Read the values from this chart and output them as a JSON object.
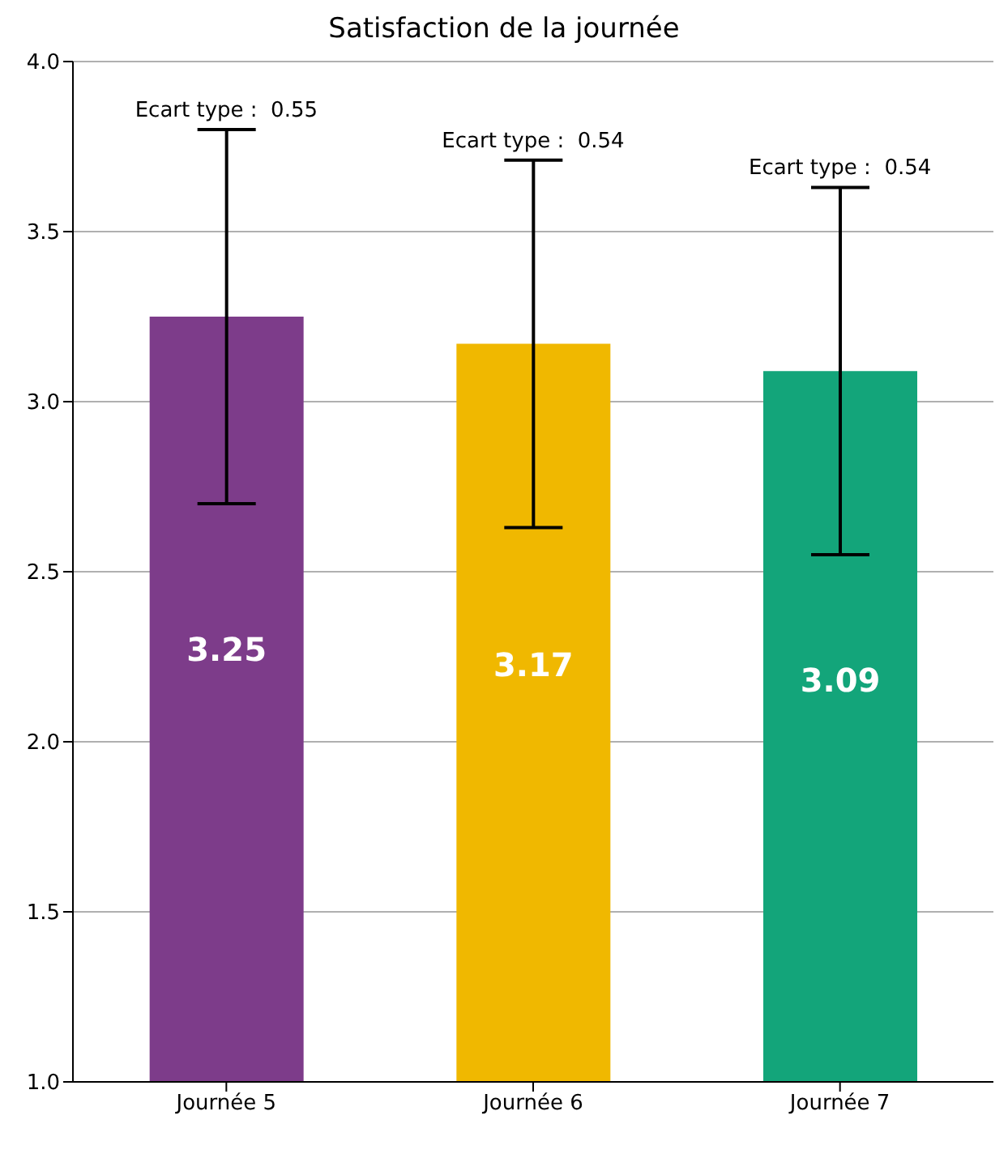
{
  "chart_data": {
    "type": "bar",
    "title": "Satisfaction de la journée",
    "categories": [
      "Journée 5",
      "Journée 6",
      "Journée 7"
    ],
    "values": [
      3.25,
      3.17,
      3.09
    ],
    "colors": [
      "#7d3c8a",
      "#f0b800",
      "#13a57a"
    ],
    "errors": [
      0.55,
      0.54,
      0.54
    ],
    "data_labels": true,
    "ylim": [
      1,
      4
    ],
    "yticks": [
      {
        "value": 1,
        "label": "1.0"
      },
      {
        "value": 1.5,
        "label": "1.5"
      },
      {
        "value": 2,
        "label": "2.0"
      },
      {
        "value": 2.5,
        "label": "2.5"
      },
      {
        "value": 3,
        "label": "3.0"
      },
      {
        "value": 3.5,
        "label": "3.5"
      },
      {
        "value": 4,
        "label": "4.0"
      }
    ],
    "grid": "y",
    "annotations": [
      {
        "text": "Ecart type :  0.55",
        "x": "Journée 5",
        "y": 3.8
      },
      {
        "text": "Ecart type :  0.54",
        "x": "Journée 6",
        "y": 3.71
      },
      {
        "text": "Ecart type :  0.54",
        "x": "Journée 7",
        "y": 3.63
      }
    ]
  }
}
